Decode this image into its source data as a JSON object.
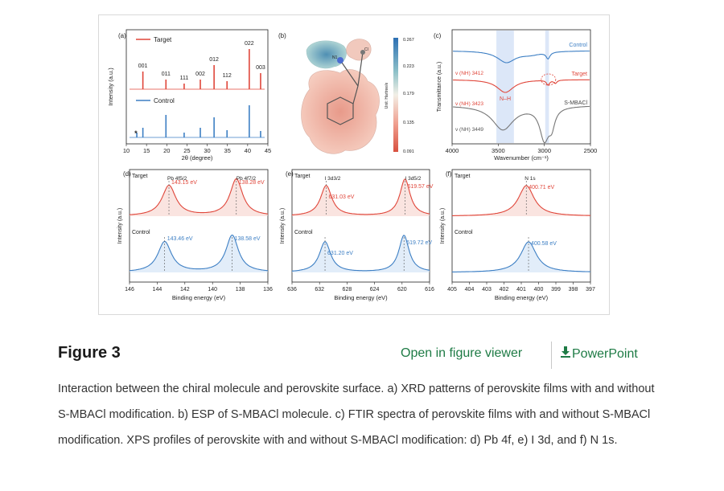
{
  "figure": {
    "title": "Figure 3",
    "open_viewer_label": "Open in figure viewer",
    "powerpoint_label": "PowerPoint",
    "caption": "Interaction between the chiral molecule and perovskite surface. a) XRD patterns of perovskite films with and without S-MBACl modification. b) ESP of S-MBACl molecule. c) FTIR spectra of perovskite films with and without S-MBACl modification. XPS profiles of perovskite with and without S-MBACl modification: d) Pb 4f, e) I 3d, and f) N 1s."
  },
  "colors": {
    "target": "#e0463a",
    "control": "#3d7fc4",
    "mbacl": "#777777",
    "link": "#1e7b45"
  },
  "chart_data": [
    {
      "panel": "a",
      "type": "line",
      "xlabel": "2θ (degree)",
      "ylabel": "Intensity (a.u.)",
      "xlim": [
        10,
        45
      ],
      "xticks": [
        10,
        15,
        20,
        25,
        30,
        35,
        40,
        45
      ],
      "series": [
        {
          "name": "Target",
          "peaks": [
            14.1,
            19.8,
            24.3,
            28.3,
            31.7,
            34.9,
            40.4,
            43.2
          ]
        },
        {
          "name": "Control",
          "peaks": [
            12.6,
            14.1,
            19.8,
            24.3,
            28.3,
            31.7,
            34.9,
            40.4,
            43.2
          ]
        }
      ],
      "peak_labels": [
        {
          "x": 14.1,
          "text": "001"
        },
        {
          "x": 19.8,
          "text": "011"
        },
        {
          "x": 24.3,
          "text": "111"
        },
        {
          "x": 28.3,
          "text": "002"
        },
        {
          "x": 31.7,
          "text": "012"
        },
        {
          "x": 34.9,
          "text": "112"
        },
        {
          "x": 40.4,
          "text": "022"
        },
        {
          "x": 43.2,
          "text": "003"
        }
      ],
      "marker": "*"
    },
    {
      "panel": "b",
      "type": "other",
      "colorbar": {
        "label": "Unit: Hartree/e",
        "ticks": [
          "0.267",
          "0.223",
          "0.179",
          "0.135",
          "0.091"
        ]
      },
      "atoms": [
        "N1",
        "Cl"
      ]
    },
    {
      "panel": "c",
      "type": "line",
      "xlabel": "Wavenumber (cm⁻¹)",
      "ylabel": "Transmittance (a.u.)",
      "xlim": [
        4000,
        2500
      ],
      "xticks": [
        4000,
        3500,
        3000,
        2500
      ],
      "series": [
        {
          "name": "Control",
          "annotation": ""
        },
        {
          "name": "Target",
          "annotation": "v (NH) 3412"
        },
        {
          "name": "S-MBACl",
          "annotation": "v (NH) 3449"
        }
      ],
      "annotations": [
        "v (NH) 3412",
        "v (NH) 3423",
        "N–H",
        "v (NH) 3449"
      ]
    },
    {
      "panel": "d",
      "type": "line",
      "xlabel": "Binding energy (eV)",
      "ylabel": "Intensity (a.u.)",
      "xlim": [
        146,
        136
      ],
      "xticks": [
        146,
        144,
        142,
        140,
        138,
        136
      ],
      "series": [
        {
          "name": "Target",
          "peaks": [
            143.15,
            138.28
          ]
        },
        {
          "name": "Control",
          "peaks": [
            143.46,
            138.58
          ]
        }
      ],
      "peak_labels": [
        "Pb 4f5/2",
        "Pb 4f7/2"
      ],
      "value_labels": {
        "target": [
          "143.15 eV",
          "138.28 eV"
        ],
        "control": [
          "143.46 eV",
          "138.58 eV"
        ]
      }
    },
    {
      "panel": "e",
      "type": "line",
      "xlabel": "Binding energy (eV)",
      "ylabel": "Intensity (a.u.)",
      "xlim": [
        636,
        616
      ],
      "xticks": [
        636,
        632,
        628,
        624,
        620,
        616
      ],
      "series": [
        {
          "name": "Target",
          "peaks": [
            631.03,
            619.57
          ]
        },
        {
          "name": "Control",
          "peaks": [
            631.2,
            619.72
          ]
        }
      ],
      "peak_labels": [
        "I 3d3/2",
        "I 3d5/2"
      ],
      "value_labels": {
        "target": [
          "631.03 eV",
          "619.57 eV"
        ],
        "control": [
          "631.20 eV",
          "619.72 eV"
        ]
      }
    },
    {
      "panel": "f",
      "type": "line",
      "xlabel": "Binding energy (eV)",
      "ylabel": "Intensity (a.u.)",
      "xlim": [
        405,
        397
      ],
      "xticks": [
        405,
        404,
        403,
        402,
        401,
        400,
        399,
        398,
        397
      ],
      "series": [
        {
          "name": "Target",
          "peaks": [
            400.71
          ]
        },
        {
          "name": "Control",
          "peaks": [
            400.58
          ]
        }
      ],
      "peak_labels": [
        "N 1s"
      ],
      "value_labels": {
        "target": [
          "400.71 eV"
        ],
        "control": [
          "400.58 eV"
        ]
      }
    }
  ]
}
